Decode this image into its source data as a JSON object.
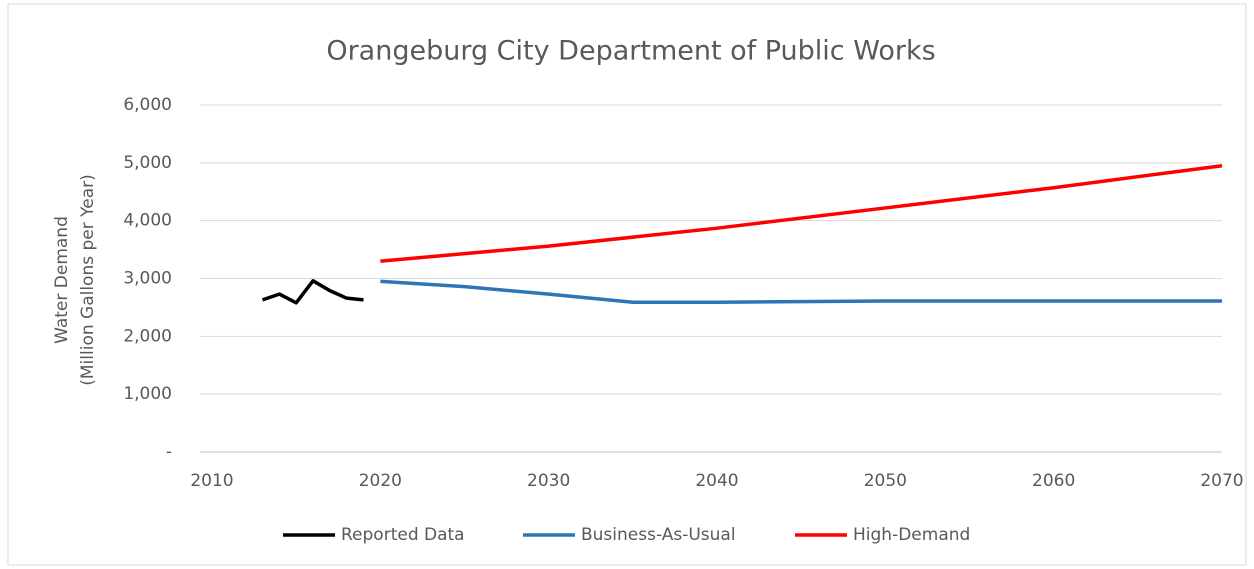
{
  "chart_data": {
    "type": "line",
    "title": "Orangeburg City Department of Public Works",
    "y_label": [
      "Water Demand",
      "(Million Gallons per Year)"
    ],
    "xlim": [
      2010,
      2070
    ],
    "xticks": [
      2010,
      2020,
      2030,
      2040,
      2050,
      2060,
      2070
    ],
    "ylim": [
      0,
      6000
    ],
    "yticks": [
      {
        "value": 0,
        "label": "-"
      },
      {
        "value": 1000,
        "label": "1,000"
      },
      {
        "value": 2000,
        "label": "2,000"
      },
      {
        "value": 3000,
        "label": "3,000"
      },
      {
        "value": 4000,
        "label": "4,000"
      },
      {
        "value": 5000,
        "label": "5,000"
      },
      {
        "value": 6000,
        "label": "6,000"
      }
    ],
    "grid": true,
    "legend": "bottom",
    "series": [
      {
        "name": "Reported Data",
        "color": "#000000",
        "x": [
          2013,
          2014,
          2015,
          2016,
          2017,
          2018,
          2019
        ],
        "values": [
          2630,
          2730,
          2580,
          2960,
          2790,
          2660,
          2630
        ]
      },
      {
        "name": "Business-As-Usual",
        "color": "#2e75b6",
        "x": [
          2020,
          2025,
          2030,
          2035,
          2040,
          2050,
          2060,
          2070
        ],
        "values": [
          2950,
          2860,
          2730,
          2590,
          2590,
          2610,
          2610,
          2610
        ]
      },
      {
        "name": "High-Demand",
        "color": "#ff0000",
        "x": [
          2020,
          2030,
          2040,
          2050,
          2060,
          2070
        ],
        "values": [
          3300,
          3560,
          3870,
          4220,
          4570,
          4950
        ]
      }
    ]
  }
}
